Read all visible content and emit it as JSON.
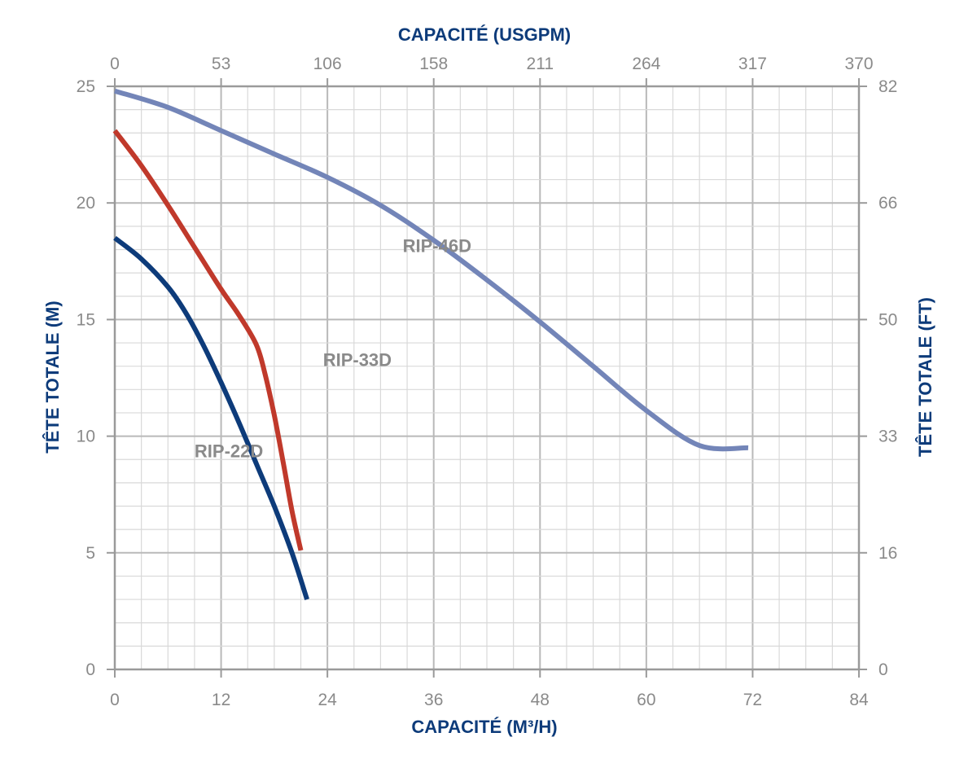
{
  "chart_data": {
    "type": "line",
    "title": "",
    "xlabel": "CAPACITÉ (M³/H)",
    "x2label": "CAPACITÉ (USGPM)",
    "ylabel": "TÊTE TOTALE (M)",
    "y2label": "TÊTE TOTALE (FT)",
    "xlim": [
      0,
      84
    ],
    "ylim": [
      0,
      25
    ],
    "x_ticks": [
      "0",
      "12",
      "24",
      "36",
      "48",
      "60",
      "72",
      "84"
    ],
    "x2_ticks": [
      "0",
      "53",
      "106",
      "158",
      "211",
      "264",
      "317",
      "370"
    ],
    "y_ticks": [
      "0",
      "5",
      "10",
      "15",
      "20",
      "25"
    ],
    "y2_ticks": [
      "0",
      "16",
      "33",
      "50",
      "66",
      "82"
    ],
    "grid": true,
    "series": [
      {
        "name": "RIP-46D",
        "color": "#7385b8",
        "label_at": [
          32.5,
          17.9
        ],
        "points": [
          [
            0,
            24.8
          ],
          [
            6,
            24.1
          ],
          [
            12,
            23.1
          ],
          [
            18,
            22.1
          ],
          [
            24,
            21.1
          ],
          [
            30,
            19.9
          ],
          [
            36,
            18.4
          ],
          [
            42,
            16.7
          ],
          [
            48,
            14.9
          ],
          [
            54,
            13.0
          ],
          [
            60,
            11.1
          ],
          [
            66,
            9.6
          ],
          [
            71.5,
            9.5
          ]
        ]
      },
      {
        "name": "RIP-33D",
        "color": "#c0392b",
        "label_at": [
          23.5,
          13.0
        ],
        "points": [
          [
            0,
            23.1
          ],
          [
            3,
            21.6
          ],
          [
            6,
            19.9
          ],
          [
            9,
            18.1
          ],
          [
            12,
            16.3
          ],
          [
            14,
            15.2
          ],
          [
            16,
            13.9
          ],
          [
            17,
            12.6
          ],
          [
            18,
            10.9
          ],
          [
            19,
            8.9
          ],
          [
            20,
            6.8
          ],
          [
            21,
            5.1
          ]
        ]
      },
      {
        "name": "RIP-22D",
        "color": "#0d3b7a",
        "label_at": [
          9.0,
          9.1
        ],
        "points": [
          [
            0,
            18.5
          ],
          [
            3,
            17.6
          ],
          [
            6,
            16.4
          ],
          [
            8,
            15.3
          ],
          [
            10,
            13.9
          ],
          [
            12,
            12.3
          ],
          [
            14,
            10.6
          ],
          [
            16,
            8.8
          ],
          [
            18,
            7.0
          ],
          [
            20,
            5.0
          ],
          [
            21.7,
            3.0
          ]
        ]
      }
    ]
  }
}
